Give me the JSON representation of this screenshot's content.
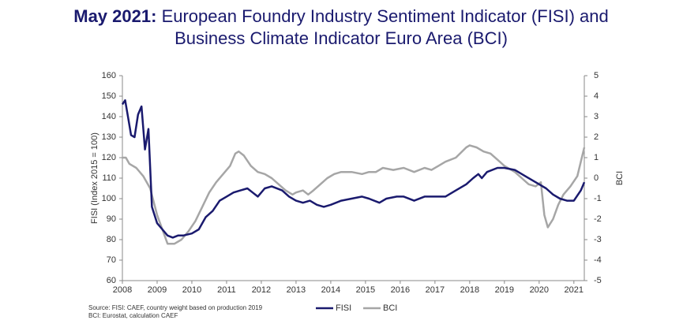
{
  "chart_data": {
    "type": "line",
    "title": {
      "date": "May 2021:",
      "line1": "European Foundry Industry Sentiment Indicator (FISI) and",
      "line2": "Business Climate Indicator Euro Area (BCI)"
    },
    "y_label": "FISI (Index 2015 = 100)",
    "y2_label": "BCI",
    "sources": [
      "Source: FISI: CAEF, country weight based on production 2019",
      "BCI: Eurostat, calculation CAEF"
    ],
    "xlim": [
      2008,
      2021.3
    ],
    "xticks": [
      2008,
      2009,
      2010,
      2011,
      2012,
      2013,
      2014,
      2015,
      2016,
      2017,
      2018,
      2019,
      2020,
      2021
    ],
    "ylim": [
      60,
      160
    ],
    "yticks": [
      60,
      70,
      80,
      90,
      100,
      110,
      120,
      130,
      140,
      150,
      160
    ],
    "y2lim": [
      -5,
      5
    ],
    "y2ticks": [
      -5,
      -4,
      -3,
      -2,
      -1,
      0,
      1,
      2,
      3,
      4,
      5
    ],
    "grid": false,
    "legend": "bottom",
    "series": [
      {
        "name": "FISI",
        "color": "#1a1a6e",
        "x": [
          2008.0,
          2008.08,
          2008.17,
          2008.25,
          2008.35,
          2008.45,
          2008.55,
          2008.65,
          2008.75,
          2008.85,
          2009.0,
          2009.15,
          2009.3,
          2009.45,
          2009.6,
          2009.75,
          2010.0,
          2010.2,
          2010.4,
          2010.6,
          2010.8,
          2011.0,
          2011.2,
          2011.4,
          2011.6,
          2011.75,
          2011.9,
          2012.1,
          2012.3,
          2012.6,
          2012.8,
          2013.0,
          2013.2,
          2013.4,
          2013.6,
          2013.8,
          2014.0,
          2014.3,
          2014.6,
          2014.9,
          2015.1,
          2015.4,
          2015.6,
          2015.9,
          2016.1,
          2016.4,
          2016.7,
          2017.0,
          2017.3,
          2017.6,
          2017.9,
          2018.1,
          2018.25,
          2018.35,
          2018.5,
          2018.8,
          2019.0,
          2019.3,
          2019.6,
          2019.9,
          2020.2,
          2020.4,
          2020.6,
          2020.8,
          2021.0,
          2021.2,
          2021.3
        ],
        "values": [
          146,
          148,
          139,
          131,
          130,
          141,
          145,
          124,
          134,
          96,
          88,
          85,
          82,
          81,
          82,
          82,
          83,
          85,
          91,
          94,
          99,
          101,
          103,
          104,
          105,
          103,
          101,
          105,
          106,
          104,
          101,
          99,
          98,
          99,
          97,
          96,
          97,
          99,
          100,
          101,
          100,
          98,
          100,
          101,
          101,
          99,
          101,
          101,
          101,
          104,
          107,
          110,
          112,
          110,
          113,
          115,
          115,
          114,
          111,
          108,
          105,
          102,
          100,
          99,
          99,
          104,
          108
        ]
      },
      {
        "name": "BCI",
        "color": "#a6a6a6",
        "axis": "y2",
        "x": [
          2008.0,
          2008.1,
          2008.2,
          2008.4,
          2008.6,
          2008.8,
          2009.0,
          2009.15,
          2009.3,
          2009.5,
          2009.7,
          2009.9,
          2010.1,
          2010.3,
          2010.5,
          2010.7,
          2010.9,
          2011.1,
          2011.25,
          2011.35,
          2011.5,
          2011.7,
          2011.9,
          2012.1,
          2012.3,
          2012.5,
          2012.7,
          2012.9,
          2013.0,
          2013.2,
          2013.35,
          2013.5,
          2013.7,
          2013.9,
          2014.1,
          2014.3,
          2014.6,
          2014.9,
          2015.1,
          2015.3,
          2015.5,
          2015.8,
          2016.1,
          2016.4,
          2016.7,
          2016.9,
          2017.1,
          2017.3,
          2017.6,
          2017.9,
          2018.0,
          2018.2,
          2018.4,
          2018.6,
          2018.8,
          2019.0,
          2019.3,
          2019.5,
          2019.7,
          2019.9,
          2020.05,
          2020.15,
          2020.25,
          2020.4,
          2020.55,
          2020.7,
          2020.9,
          2021.1,
          2021.2,
          2021.3
        ],
        "values": [
          1.0,
          1.0,
          0.7,
          0.5,
          0.1,
          -0.5,
          -1.8,
          -2.5,
          -3.2,
          -3.2,
          -3.0,
          -2.6,
          -2.1,
          -1.4,
          -0.7,
          -0.2,
          0.2,
          0.6,
          1.2,
          1.3,
          1.1,
          0.6,
          0.3,
          0.2,
          0.0,
          -0.3,
          -0.6,
          -0.8,
          -0.7,
          -0.6,
          -0.8,
          -0.6,
          -0.3,
          0.0,
          0.2,
          0.3,
          0.3,
          0.2,
          0.3,
          0.3,
          0.5,
          0.4,
          0.5,
          0.3,
          0.5,
          0.4,
          0.6,
          0.8,
          1.0,
          1.5,
          1.6,
          1.5,
          1.3,
          1.2,
          0.9,
          0.6,
          0.3,
          0.0,
          -0.3,
          -0.4,
          -0.2,
          -1.8,
          -2.4,
          -2.0,
          -1.3,
          -0.8,
          -0.4,
          0.1,
          0.8,
          1.5
        ]
      }
    ]
  }
}
